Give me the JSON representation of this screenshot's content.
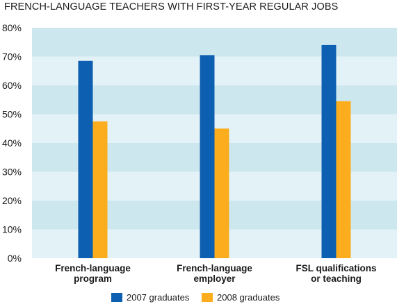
{
  "chart_data": {
    "type": "bar",
    "title": "FRENCH-LANGUAGE TEACHERS WITH FIRST-YEAR REGULAR JOBS",
    "categories": [
      [
        "French-language",
        "program"
      ],
      [
        "French-language",
        "employer"
      ],
      [
        "FSL qualifications",
        "or teaching"
      ]
    ],
    "series": [
      {
        "name": "2007 graduates",
        "color": "#0d5fb1",
        "values": [
          68.5,
          70.5,
          74
        ]
      },
      {
        "name": "2008 graduates",
        "color": "#fbad1d",
        "values": [
          47.5,
          45,
          54.5
        ]
      }
    ],
    "yticks": [
      "0%",
      "10%",
      "20%",
      "30%",
      "40%",
      "50%",
      "60%",
      "70%",
      "80%"
    ],
    "ylim": [
      0,
      80
    ],
    "ylabel": "",
    "xlabel": "",
    "band_colors": [
      "#e3f2f7",
      "#cde7ef"
    ],
    "legend_position": "bottom-center"
  }
}
